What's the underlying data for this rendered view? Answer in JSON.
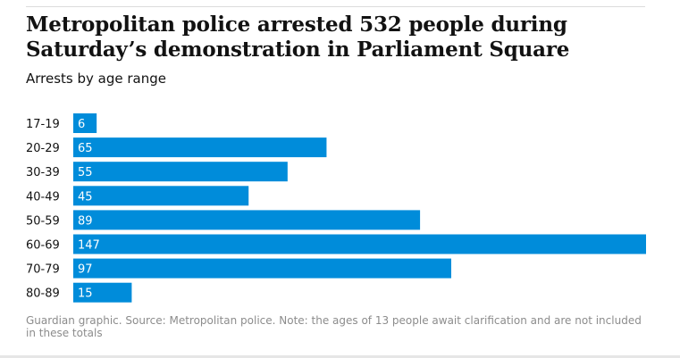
{
  "title": "Metropolitan police arrested 532 people during Saturday’s demonstration in Parliament Square",
  "subtitle": "Arrests by age range",
  "source_note": "Guardian graphic. Source: Metropolitan police. Note: the ages of 13 people await clarification and are not included in these totals",
  "colors": {
    "bar": "#008cda",
    "bar_label": "#ffffff",
    "category_label": "#121212"
  },
  "chart_data": {
    "type": "bar",
    "orientation": "horizontal",
    "title": "Metropolitan police arrested 532 people during Saturday’s demonstration in Parliament Square",
    "subtitle": "Arrests by age range",
    "categories": [
      "17-19",
      "20-29",
      "30-39",
      "40-49",
      "50-59",
      "60-69",
      "70-79",
      "80-89"
    ],
    "values": [
      6,
      65,
      55,
      45,
      89,
      147,
      97,
      15
    ],
    "xlim": [
      0,
      147
    ],
    "grid": false,
    "legend": "none",
    "data_labels": "inside-bar-start"
  }
}
